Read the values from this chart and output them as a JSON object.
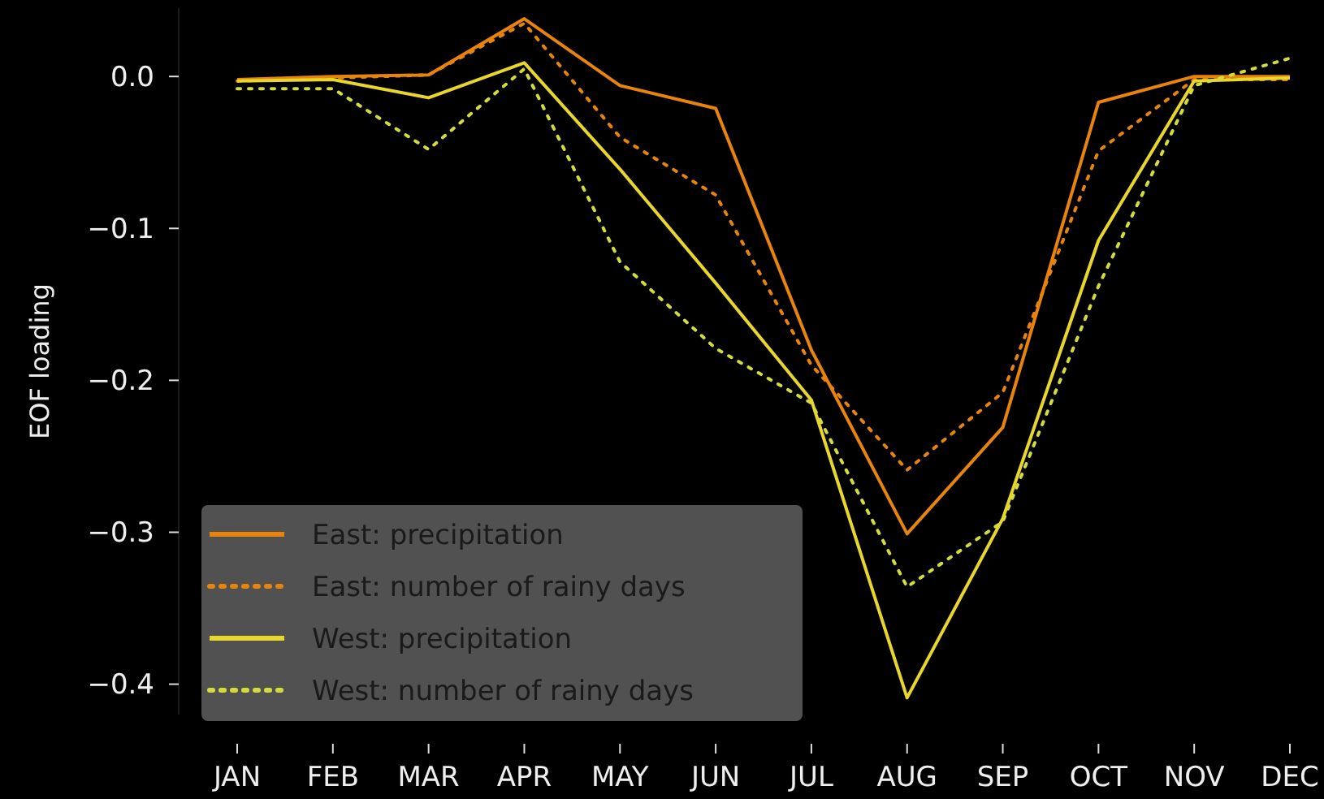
{
  "chart_data": {
    "type": "line",
    "ylabel": "EOF loading",
    "categories": [
      "JAN",
      "FEB",
      "MAR",
      "APR",
      "MAY",
      "JUN",
      "JUL",
      "AUG",
      "SEP",
      "OCT",
      "NOV",
      "DEC"
    ],
    "ylim": [
      -0.42,
      0.045
    ],
    "yticks": [
      {
        "value": 0,
        "label": "0.0"
      },
      {
        "value": -0.1,
        "label": "−0.1"
      },
      {
        "value": -0.2,
        "label": "−0.2"
      },
      {
        "value": -0.3,
        "label": "−0.3"
      },
      {
        "value": -0.4,
        "label": "−0.4"
      }
    ],
    "grid": false,
    "legend": "bottom left",
    "series": [
      {
        "name": "East: precipitation",
        "color": "#e8830c",
        "line_style": "solid",
        "values": [
          -0.002,
          0,
          0.001,
          0.038,
          -0.006,
          -0.021,
          -0.18,
          -0.301,
          -0.231,
          -0.017,
          0,
          0
        ]
      },
      {
        "name": "East: number of rainy days",
        "color": "#e8830c",
        "line_style": "dotted",
        "values": [
          -0.003,
          -0.001,
          0.001,
          0.035,
          -0.04,
          -0.078,
          -0.19,
          -0.259,
          -0.208,
          -0.049,
          -0.002,
          -0.002
        ]
      },
      {
        "name": "West: precipitation",
        "color": "#e8d62a",
        "line_style": "solid",
        "values": [
          -0.003,
          -0.002,
          -0.014,
          0.009,
          -0.061,
          -0.136,
          -0.213,
          -0.409,
          -0.291,
          -0.108,
          -0.003,
          -0.001
        ]
      },
      {
        "name": "West: number of rainy days",
        "color": "#d4dc3c",
        "line_style": "dotted",
        "values": [
          -0.008,
          -0.008,
          -0.048,
          0.005,
          -0.122,
          -0.179,
          -0.215,
          -0.336,
          -0.293,
          -0.138,
          -0.006,
          0.012
        ]
      }
    ]
  }
}
